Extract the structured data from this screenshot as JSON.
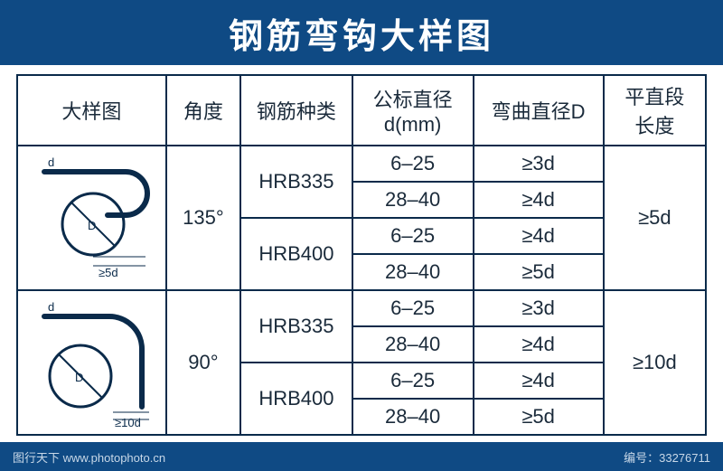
{
  "colors": {
    "header_bg": "#0f4a84",
    "header_text": "#ffffff",
    "table_border": "#0a2a4a",
    "table_text": "#1a2a3a",
    "footer_bg": "#0f4a84",
    "footer_text": "#c8d8e8"
  },
  "title": "钢筋弯钩大样图",
  "columns": {
    "diagram": "大样图",
    "angle": "角度",
    "type": "钢筋种类",
    "nominal": "公标直径\nd(mm)",
    "bend": "弯曲直径D",
    "length": "平直段\n长度"
  },
  "groups": [
    {
      "angle": "135°",
      "length": "≥5d",
      "diagram_label_d": "d",
      "diagram_label_D": "D",
      "diagram_label_len": "≥5d",
      "types": [
        {
          "name": "HRB335",
          "rows": [
            {
              "nominal": "6–25",
              "bend": "≥3d"
            },
            {
              "nominal": "28–40",
              "bend": "≥4d"
            }
          ]
        },
        {
          "name": "HRB400",
          "rows": [
            {
              "nominal": "6–25",
              "bend": "≥4d"
            },
            {
              "nominal": "28–40",
              "bend": "≥5d"
            }
          ]
        }
      ]
    },
    {
      "angle": "90°",
      "length": "≥10d",
      "diagram_label_d": "d",
      "diagram_label_D": "D",
      "diagram_label_len": "≥10d",
      "types": [
        {
          "name": "HRB335",
          "rows": [
            {
              "nominal": "6–25",
              "bend": "≥3d"
            },
            {
              "nominal": "28–40",
              "bend": "≥4d"
            }
          ]
        },
        {
          "name": "HRB400",
          "rows": [
            {
              "nominal": "6–25",
              "bend": "≥4d"
            },
            {
              "nominal": "28–40",
              "bend": "≥5d"
            }
          ]
        }
      ]
    }
  ],
  "footer": {
    "site": "图行天下 www.photophoto.cn",
    "id": "编号：33276711"
  }
}
